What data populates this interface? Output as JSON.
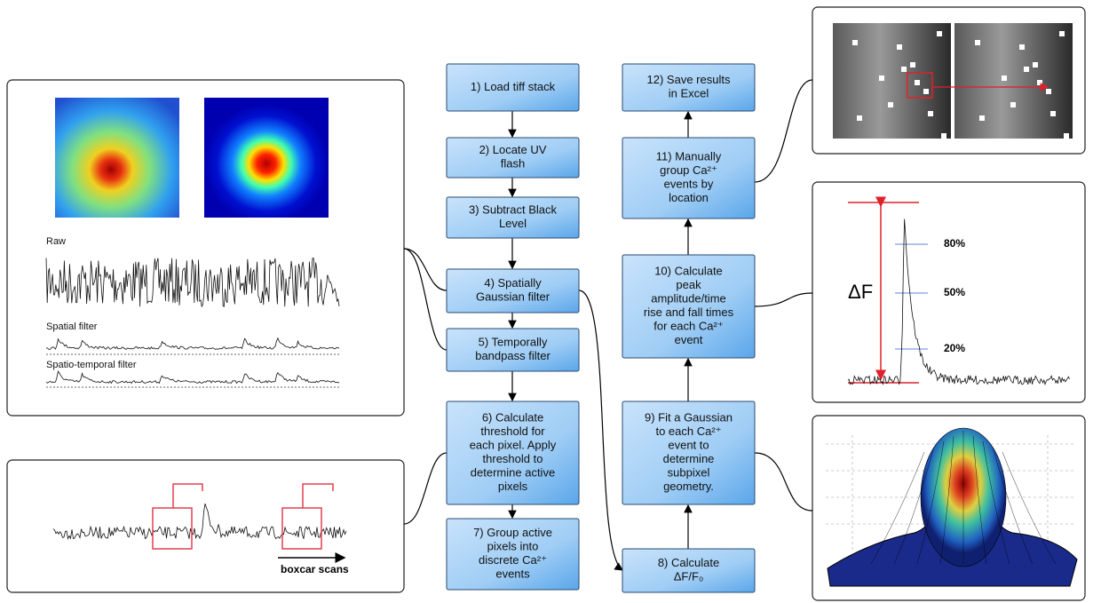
{
  "steps": [
    {
      "lines": [
        "1) Load tiff stack"
      ]
    },
    {
      "lines": [
        "2) Locate UV",
        "flash"
      ]
    },
    {
      "lines": [
        "3) Subtract Black",
        "Level"
      ]
    },
    {
      "lines": [
        "4) Spatially",
        "Gaussian filter"
      ]
    },
    {
      "lines": [
        "5) Temporally",
        "bandpass filter"
      ]
    },
    {
      "lines": [
        "6) Calculate",
        "threshold for",
        "each pixel. Apply",
        "threshold to",
        "determine active",
        "pixels"
      ]
    },
    {
      "lines": [
        "7) Group active",
        "pixels into",
        "discrete Ca²⁺",
        "events"
      ]
    },
    {
      "lines": [
        "8) Calculate",
        "ΔF/F₀"
      ]
    },
    {
      "lines": [
        "9) Fit a Gaussian",
        "to each Ca²⁺",
        "event to",
        "determine",
        "subpixel",
        "geometry."
      ]
    },
    {
      "lines": [
        "10) Calculate",
        "peak",
        "amplitude/time",
        "rise and fall times",
        "for each Ca²⁺",
        "event"
      ]
    },
    {
      "lines": [
        "11) Manually",
        "group Ca²⁺",
        "events by",
        "location"
      ]
    },
    {
      "lines": [
        "12) Save results",
        "in Excel"
      ]
    }
  ],
  "panels": {
    "raw": "Raw",
    "spatial": "Spatial filter",
    "spatiotemporal": "Spatio-temporal filter",
    "boxcar": "boxcar scans",
    "delta_f": "ΔF",
    "p80": "80%",
    "p50": "50%",
    "p20": "20%"
  }
}
